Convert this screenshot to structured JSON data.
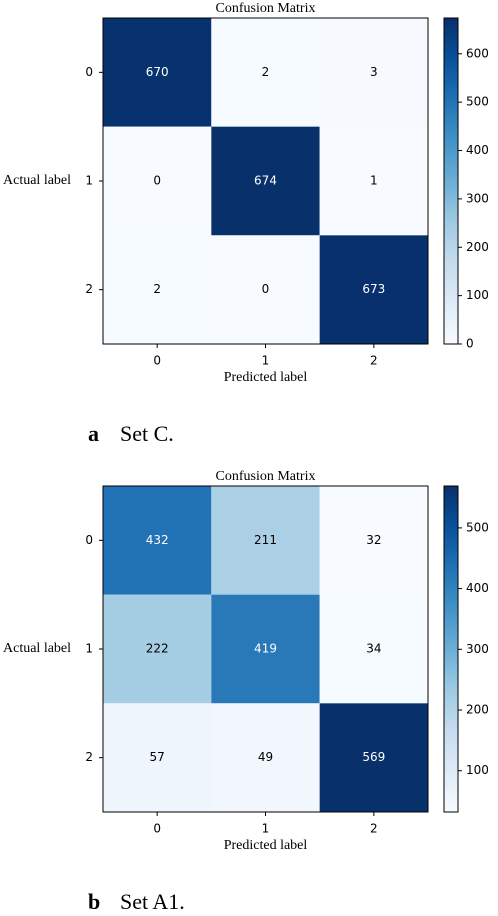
{
  "chart_data": [
    {
      "type": "heatmap",
      "title": "Confusion Matrix",
      "xlabel": "Predicted label",
      "ylabel": "Actual label",
      "x_categories": [
        "0",
        "1",
        "2"
      ],
      "y_categories": [
        "0",
        "1",
        "2"
      ],
      "values": [
        [
          670,
          2,
          3
        ],
        [
          0,
          674,
          1
        ],
        [
          2,
          0,
          673
        ]
      ],
      "colormap": "Blues",
      "zlim": [
        0,
        674
      ],
      "zticks": [
        0,
        100,
        200,
        300,
        400,
        500,
        600
      ],
      "panel_label": "a",
      "caption": "Set C."
    },
    {
      "type": "heatmap",
      "title": "Confusion Matrix",
      "xlabel": "Predicted label",
      "ylabel": "Actual label",
      "x_categories": [
        "0",
        "1",
        "2"
      ],
      "y_categories": [
        "0",
        "1",
        "2"
      ],
      "values": [
        [
          432,
          211,
          32
        ],
        [
          222,
          419,
          34
        ],
        [
          57,
          49,
          569
        ]
      ],
      "colormap": "Blues",
      "zlim": [
        32,
        569
      ],
      "zticks": [
        100,
        200,
        300,
        400,
        500
      ],
      "panel_label": "b",
      "caption": "Set A1."
    }
  ]
}
